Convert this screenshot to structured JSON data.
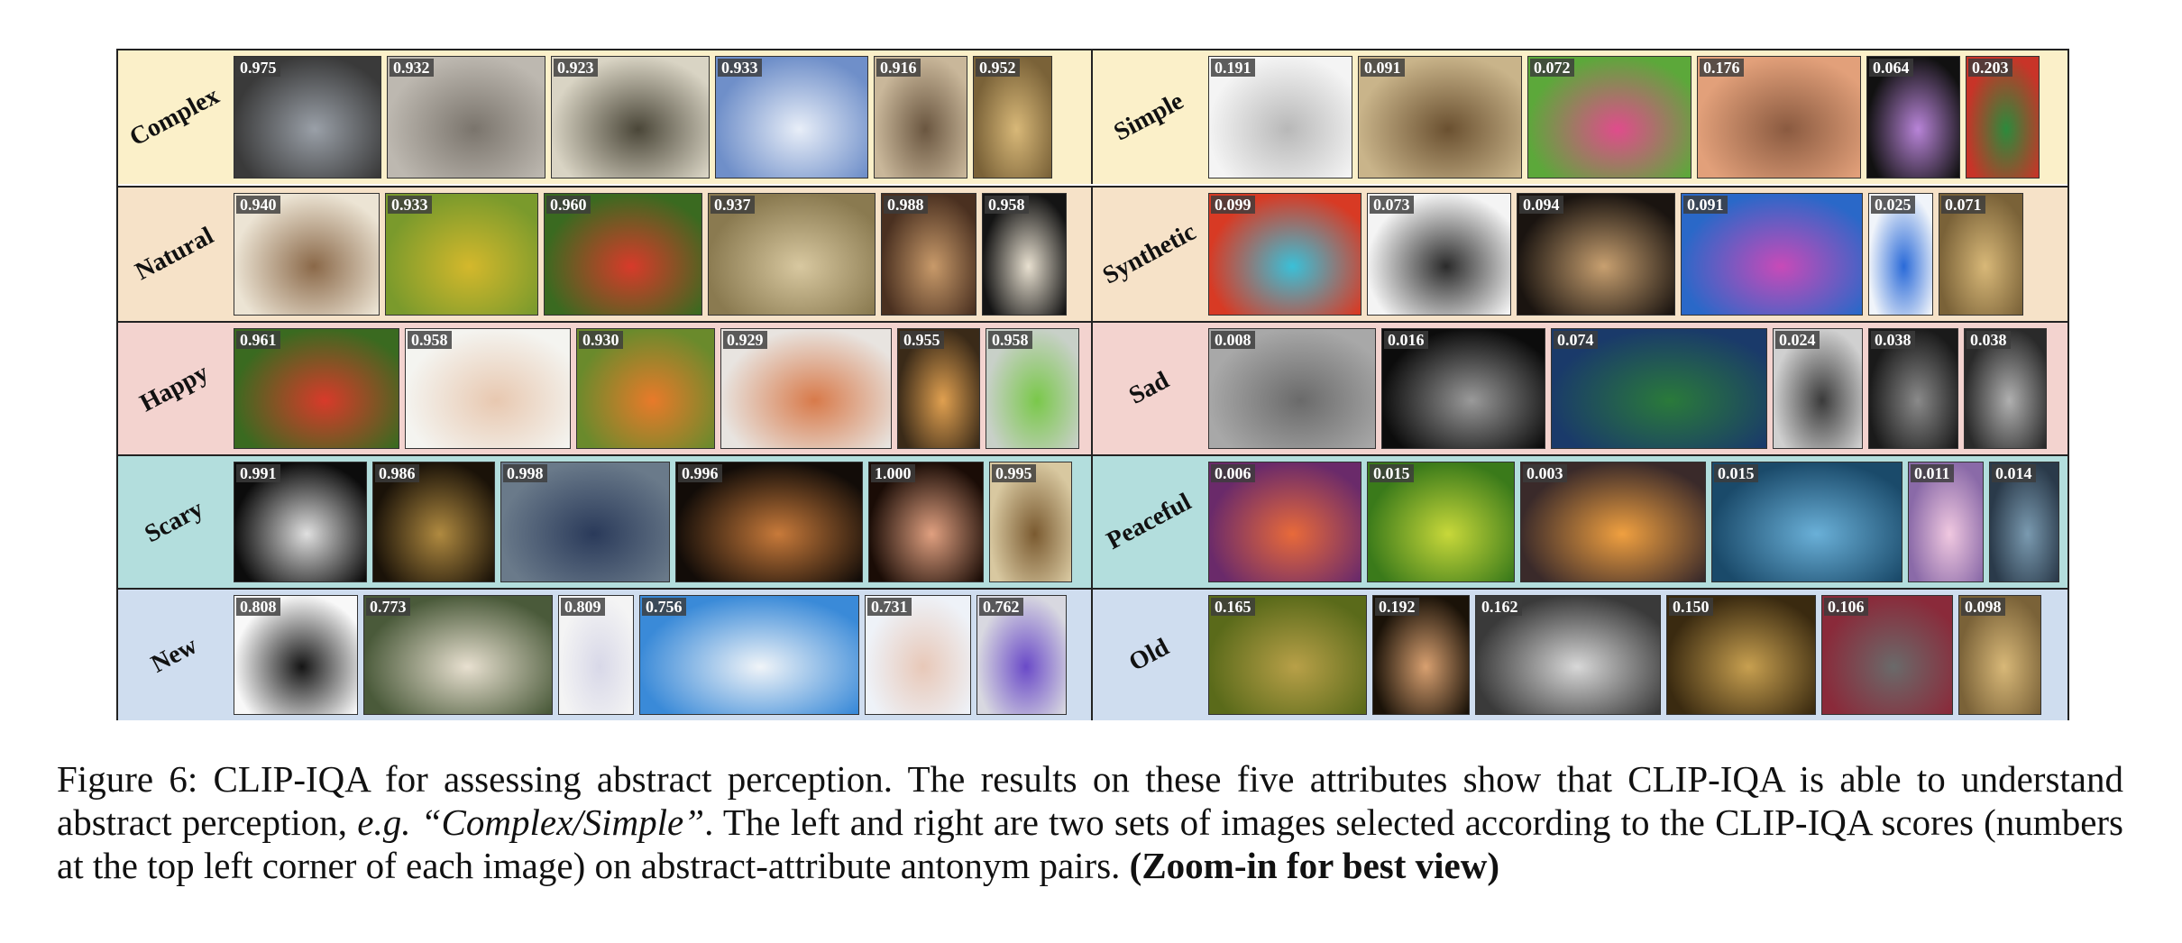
{
  "rows": [
    {
      "bg": "#fbf0c9",
      "left": {
        "label": "Complex",
        "scores": [
          "0.975",
          "0.932",
          "0.923",
          "0.933",
          "0.916",
          "0.952"
        ],
        "colors": [
          [
            "#3a3a3a",
            "#9aa0a8"
          ],
          [
            "#bdb8b0",
            "#7a746c"
          ],
          [
            "#d9d4c4",
            "#4a4638"
          ],
          [
            "#6f8fc9",
            "#e8eef8"
          ],
          [
            "#c9b79a",
            "#6a5640"
          ],
          [
            "#7a6238",
            "#d8b878"
          ]
        ]
      },
      "right": {
        "label": "Simple",
        "scores": [
          "0.191",
          "0.091",
          "0.072",
          "0.176",
          "0.064",
          "0.203"
        ],
        "colors": [
          [
            "#f4f4f4",
            "#b8b8b8"
          ],
          [
            "#c9b48a",
            "#6a5030"
          ],
          [
            "#5ca83a",
            "#e04c8c"
          ],
          [
            "#e2a07a",
            "#8a5a40"
          ],
          [
            "#111111",
            "#b884d8"
          ],
          [
            "#c83428",
            "#2c8a3c"
          ]
        ]
      }
    },
    {
      "bg": "#f6e2c8",
      "left": {
        "label": "Natural",
        "scores": [
          "0.940",
          "0.933",
          "0.960",
          "0.937",
          "0.988",
          "0.958"
        ],
        "colors": [
          [
            "#ece4d4",
            "#8a6848"
          ],
          [
            "#7a9a2c",
            "#d4b82c"
          ],
          [
            "#3a6a20",
            "#d83a2a"
          ],
          [
            "#8a7a50",
            "#d8c8a0"
          ],
          [
            "#4a3020",
            "#c89a6a"
          ],
          [
            "#141414",
            "#e8e0d0"
          ]
        ]
      },
      "right": {
        "label": "Synthetic",
        "scores": [
          "0.099",
          "0.073",
          "0.094",
          "0.091",
          "0.025",
          "0.071"
        ],
        "colors": [
          [
            "#d83a24",
            "#3ac0d8"
          ],
          [
            "#f4f4f4",
            "#2a2a2a"
          ],
          [
            "#1a1410",
            "#c8a070"
          ],
          [
            "#2a68c8",
            "#c84ab8"
          ],
          [
            "#f0f4fa",
            "#2a6ad8"
          ],
          [
            "#7a6238",
            "#d8b878"
          ]
        ]
      }
    },
    {
      "bg": "#f3d3cf",
      "left": {
        "label": "Happy",
        "scores": [
          "0.961",
          "0.958",
          "0.930",
          "0.929",
          "0.955",
          "0.958"
        ],
        "colors": [
          [
            "#3a6a20",
            "#d83a2a"
          ],
          [
            "#f4f4f0",
            "#e8c8b0"
          ],
          [
            "#6a8a2c",
            "#e87a2a"
          ],
          [
            "#e8e4e0",
            "#d87a4a"
          ],
          [
            "#3a2a18",
            "#e0a050"
          ],
          [
            "#c8d0c8",
            "#7ac84a"
          ]
        ]
      },
      "right": {
        "label": "Sad",
        "scores": [
          "0.008",
          "0.016",
          "0.074",
          "0.024",
          "0.038",
          "0.038"
        ],
        "colors": [
          [
            "#a8a8a8",
            "#6a6a6a"
          ],
          [
            "#0c0c0c",
            "#9a9a9a"
          ],
          [
            "#1a3a6a",
            "#2a7a3a"
          ],
          [
            "#d0d0d0",
            "#3a3a3a"
          ],
          [
            "#1a1a1a",
            "#8a8a8a"
          ],
          [
            "#2a2a2a",
            "#b0b0b0"
          ]
        ]
      }
    },
    {
      "bg": "#b3dedd",
      "left": {
        "label": "Scary",
        "scores": [
          "0.991",
          "0.986",
          "0.998",
          "0.996",
          "1.000",
          "0.995"
        ],
        "colors": [
          [
            "#0c0c0c",
            "#e0e0e0"
          ],
          [
            "#1a1208",
            "#b08a40"
          ],
          [
            "#6a7a8a",
            "#2a3a5a"
          ],
          [
            "#120c08",
            "#c87a3a"
          ],
          [
            "#1a0c06",
            "#e0a080"
          ],
          [
            "#d8c8a0",
            "#7a5a30"
          ]
        ]
      },
      "right": {
        "label": "Peaceful",
        "scores": [
          "0.006",
          "0.015",
          "0.003",
          "0.015",
          "0.011",
          "0.014"
        ],
        "colors": [
          [
            "#6a2a6a",
            "#e86a3a"
          ],
          [
            "#3a7a1a",
            "#c8d83a"
          ],
          [
            "#3a2a2a",
            "#f0a040"
          ],
          [
            "#1a4a6a",
            "#6ab0d8"
          ],
          [
            "#8a6aa8",
            "#f0c8e0"
          ],
          [
            "#2a3a4a",
            "#7a9ab0"
          ]
        ]
      }
    },
    {
      "bg": "#cfddef",
      "left": {
        "label": "New",
        "scores": [
          "0.808",
          "0.773",
          "0.809",
          "0.756",
          "0.731",
          "0.762"
        ],
        "colors": [
          [
            "#f8f8f8",
            "#141414"
          ],
          [
            "#4a5a3a",
            "#e8e0d0"
          ],
          [
            "#f4f4f4",
            "#d8d8e8"
          ],
          [
            "#3a8ad8",
            "#f0f4f8"
          ],
          [
            "#eef2f8",
            "#e8c8b8"
          ],
          [
            "#d8d8e0",
            "#6a4ac8"
          ]
        ]
      },
      "right": {
        "label": "Old",
        "scores": [
          "0.165",
          "0.192",
          "0.162",
          "0.150",
          "0.106",
          "0.098"
        ],
        "colors": [
          [
            "#5a6a1a",
            "#b8a048"
          ],
          [
            "#1a1208",
            "#d8a070"
          ],
          [
            "#3a3a3a",
            "#d8d8d8"
          ],
          [
            "#3a2a10",
            "#c8a050"
          ],
          [
            "#8a2a3a",
            "#6a6a6a"
          ],
          [
            "#7a6238",
            "#d8b878"
          ]
        ]
      }
    }
  ],
  "caption": {
    "part1": "Figure 6: CLIP-IQA for assessing abstract perception. The results on these five attributes show that CLIP-IQA is able to understand abstract perception, ",
    "eg": "e.g. “Complex/Simple”",
    "part2": ". The left and right are two sets of images selected according to the CLIP-IQA scores (numbers at the top left corner of each image) on abstract-attribute antonym pairs. ",
    "bold": "(Zoom-in for best view)"
  }
}
